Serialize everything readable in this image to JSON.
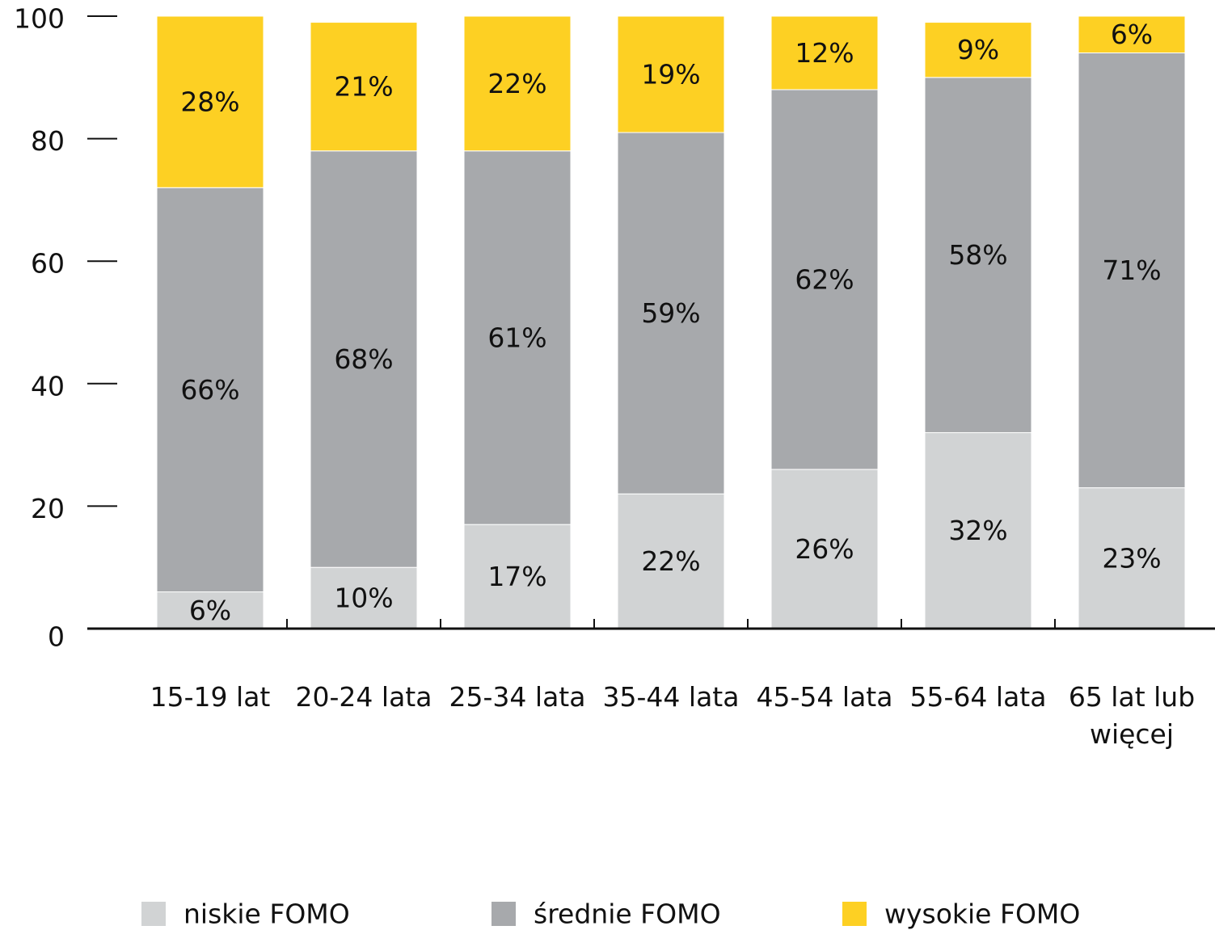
{
  "chart_data": {
    "type": "stacked_bar",
    "categories": [
      "15-19 lat",
      "20-24 lata",
      "25-34 lata",
      "35-44 lata",
      "45-54 lata",
      "55-64 lata",
      "65 lat lub więcej"
    ],
    "series": [
      {
        "name": "niskie FOMO",
        "color": "#d1d3d4",
        "values": [
          6,
          10,
          17,
          22,
          26,
          32,
          23
        ],
        "value_labels": [
          "6%",
          "10%",
          "17%",
          "22%",
          "26%",
          "32%",
          "23%"
        ]
      },
      {
        "name": "średnie FOMO",
        "color": "#a7a9ac",
        "values": [
          66,
          68,
          61,
          59,
          62,
          58,
          71
        ],
        "value_labels": [
          "66%",
          "68%",
          "61%",
          "59%",
          "62%",
          "58%",
          "71%"
        ]
      },
      {
        "name": "wysokie FOMO",
        "color": "#fdd023",
        "values": [
          28,
          21,
          22,
          19,
          12,
          9,
          6
        ],
        "value_labels": [
          "28%",
          "21%",
          "22%",
          "19%",
          "12%",
          "9%",
          "6%"
        ]
      }
    ],
    "ylim": [
      0,
      100
    ],
    "yticks": [
      0,
      20,
      40,
      60,
      80,
      100
    ],
    "legend": "bottom"
  }
}
